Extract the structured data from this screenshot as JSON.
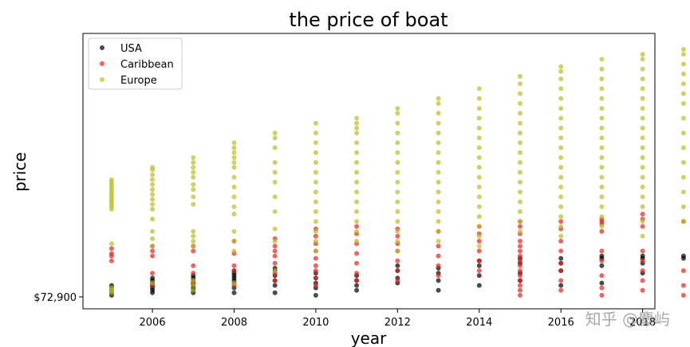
{
  "chart_data": {
    "type": "scatter",
    "title": "the price of boat",
    "xlabel": "year",
    "ylabel": "price",
    "xlim": [
      2004.3,
      2018.3
    ],
    "ylim": [
      0,
      100
    ],
    "x_ticks": [
      2006,
      2008,
      2010,
      2012,
      2014,
      2016,
      2018
    ],
    "x_tick_labels": [
      "2006",
      "2008",
      "2010",
      "2012",
      "2014",
      "2016",
      "2018"
    ],
    "y_ticks": [
      0
    ],
    "y_tick_labels": [
      "$72,900"
    ],
    "grid": false,
    "legend_position": "top-left",
    "series": [
      {
        "name": "USA",
        "color": "#000000",
        "points_by_year": {
          "2005": [
            0,
            1,
            2,
            3,
            4
          ],
          "2006": [
            1,
            2,
            3,
            4,
            5,
            6,
            7
          ],
          "2007": [
            1,
            2,
            3,
            4,
            5,
            6,
            7,
            8
          ],
          "2008": [
            1,
            3,
            5,
            6,
            7,
            8,
            9,
            10
          ],
          "2009": [
            1,
            4,
            6,
            8,
            10,
            11
          ],
          "2010": [
            0,
            3,
            5,
            7,
            9
          ],
          "2011": [
            2,
            4,
            6,
            8
          ],
          "2012": [
            5,
            7,
            10,
            12
          ],
          "2013": [
            2,
            6,
            9,
            11
          ],
          "2014": [
            4,
            8,
            12,
            14
          ],
          "2015": [
            6,
            9,
            13,
            15
          ],
          "2016": [
            4,
            10,
            13,
            15
          ],
          "2017": [
            5,
            12,
            15,
            16
          ],
          "2018": [
            9,
            13,
            15,
            16
          ],
          "2019": [
            15,
            16
          ]
        }
      },
      {
        "name": "Caribbean",
        "color": "#e8211e",
        "points_by_year": {
          "2005": [
            14,
            16,
            17,
            19
          ],
          "2006": [
            4,
            9,
            16,
            18,
            20
          ],
          "2007": [
            5,
            9,
            12,
            18,
            20
          ],
          "2008": [
            4,
            10,
            12,
            17,
            22
          ],
          "2009": [
            6,
            9,
            13,
            16,
            18,
            20,
            23
          ],
          "2010": [
            4,
            7,
            10,
            12,
            15,
            18,
            21,
            24,
            27
          ],
          "2011": [
            6,
            9,
            13,
            17,
            21,
            25,
            28
          ],
          "2012": [
            6,
            10,
            14,
            18,
            21,
            24,
            27
          ],
          "2013": [
            8,
            12,
            16,
            20,
            26
          ],
          "2014": [
            10,
            14,
            18,
            22,
            25,
            28
          ],
          "2015": [
            0,
            2,
            4,
            6,
            8,
            10,
            12,
            14,
            16,
            18,
            20,
            22,
            25,
            28,
            30
          ],
          "2016": [
            2,
            6,
            10,
            13,
            18,
            22,
            27,
            30
          ],
          "2017": [
            0,
            3,
            8,
            14,
            18,
            26,
            29,
            30,
            31
          ],
          "2018": [
            2,
            6,
            10,
            14,
            18,
            28,
            31,
            33
          ],
          "2019": [
            0,
            4,
            10,
            30
          ]
        }
      },
      {
        "name": "Europe",
        "color": "#bcbd22",
        "points_by_year": {
          "2005": [
            1,
            2,
            3,
            21,
            35,
            36,
            37,
            38,
            39,
            40,
            41,
            42,
            43,
            44,
            45,
            46,
            47
          ],
          "2006": [
            5,
            20,
            23,
            26,
            31,
            35,
            37,
            39,
            41,
            43,
            45,
            47,
            49,
            51,
            52
          ],
          "2007": [
            2,
            4,
            6,
            20,
            22,
            24,
            26,
            37,
            40,
            43,
            45,
            48,
            50,
            52,
            54,
            56
          ],
          "2008": [
            5,
            18,
            22,
            26,
            33,
            36,
            40,
            44,
            48,
            52,
            54,
            56,
            58,
            60,
            62
          ],
          "2009": [
            10,
            22,
            27,
            34,
            40,
            46,
            50,
            54,
            60,
            64,
            66
          ],
          "2010": [
            18,
            22,
            26,
            30,
            34,
            38,
            42,
            46,
            50,
            54,
            58,
            62,
            66,
            70
          ],
          "2011": [
            22,
            26,
            30,
            34,
            38,
            42,
            46,
            50,
            54,
            58,
            62,
            66,
            68,
            70,
            72
          ],
          "2012": [
            18,
            22,
            26,
            30,
            34,
            38,
            42,
            46,
            50,
            54,
            58,
            62,
            66,
            70,
            74,
            76
          ],
          "2013": [
            22,
            26,
            30,
            34,
            38,
            42,
            46,
            50,
            54,
            58,
            62,
            66,
            70,
            74,
            78,
            80
          ],
          "2014": [
            20,
            24,
            28,
            32,
            36,
            40,
            44,
            48,
            52,
            56,
            60,
            64,
            68,
            72,
            76,
            80,
            84
          ],
          "2015": [
            26,
            30,
            34,
            38,
            42,
            46,
            50,
            54,
            58,
            62,
            66,
            70,
            74,
            78,
            82,
            86,
            89
          ],
          "2016": [
            24,
            28,
            32,
            36,
            40,
            44,
            48,
            52,
            56,
            60,
            64,
            68,
            72,
            76,
            80,
            84,
            88,
            91,
            93
          ],
          "2017": [
            28,
            32,
            36,
            40,
            44,
            48,
            52,
            56,
            60,
            64,
            68,
            72,
            76,
            80,
            84,
            88,
            92,
            96
          ],
          "2018": [
            24,
            30,
            36,
            40,
            44,
            48,
            52,
            56,
            60,
            64,
            68,
            72,
            76,
            80,
            84,
            88,
            92,
            96,
            98
          ],
          "2019": [
            30,
            36,
            42,
            48,
            54,
            60,
            66,
            72,
            78,
            82,
            86,
            90,
            94,
            98,
            100
          ]
        }
      }
    ]
  },
  "watermark": "知乎 @麋屿"
}
